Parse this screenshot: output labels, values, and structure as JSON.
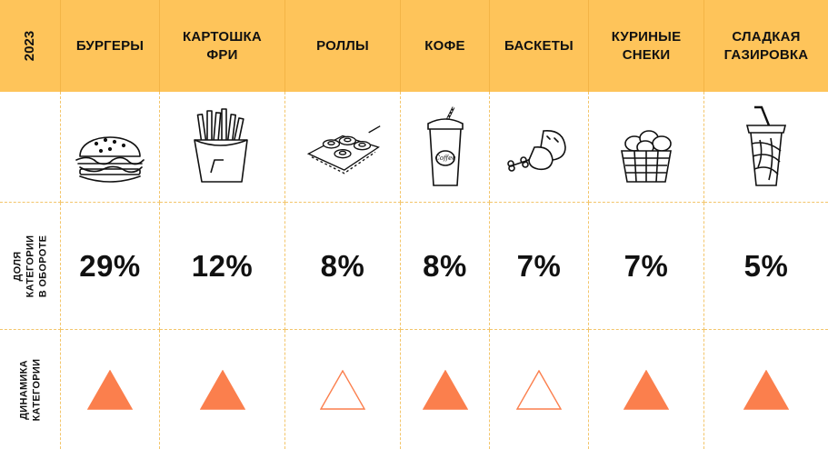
{
  "year": "2023",
  "row_labels": {
    "share": [
      "ДОЛЯ",
      "КАТЕГОРИИ",
      "В ОБОРОТЕ"
    ],
    "dynamics": [
      "ДИНАМИКА",
      "КАТЕГОРИИ"
    ]
  },
  "categories": [
    {
      "name_lines": [
        "БУРГЕРЫ"
      ],
      "icon": "burger-icon",
      "share": "29%",
      "dynamics": "growth"
    },
    {
      "name_lines": [
        "КАРТОШКА",
        "ФРИ"
      ],
      "icon": "fries-icon",
      "share": "12%",
      "dynamics": "growth"
    },
    {
      "name_lines": [
        "РОЛЛЫ"
      ],
      "icon": "rolls-icon",
      "share": "8%",
      "dynamics": "neutral"
    },
    {
      "name_lines": [
        "КОФЕ"
      ],
      "icon": "coffee-cup-icon",
      "share": "8%",
      "dynamics": "growth"
    },
    {
      "name_lines": [
        "БАСКЕТЫ"
      ],
      "icon": "chicken-drumsticks-icon",
      "share": "7%",
      "dynamics": "neutral"
    },
    {
      "name_lines": [
        "КУРИНЫЕ",
        "СНЕКИ"
      ],
      "icon": "chicken-nuggets-basket-icon",
      "share": "7%",
      "dynamics": "growth"
    },
    {
      "name_lines": [
        "СЛАДКАЯ",
        "ГАЗИРОВКА"
      ],
      "icon": "soda-cup-icon",
      "share": "5%",
      "dynamics": "growth"
    }
  ],
  "colors": {
    "header_bg": "#fec45a",
    "grid_line": "#f3c56a",
    "triangle": "#fb7f4d"
  },
  "coffee_cup_text": "Coffee"
}
